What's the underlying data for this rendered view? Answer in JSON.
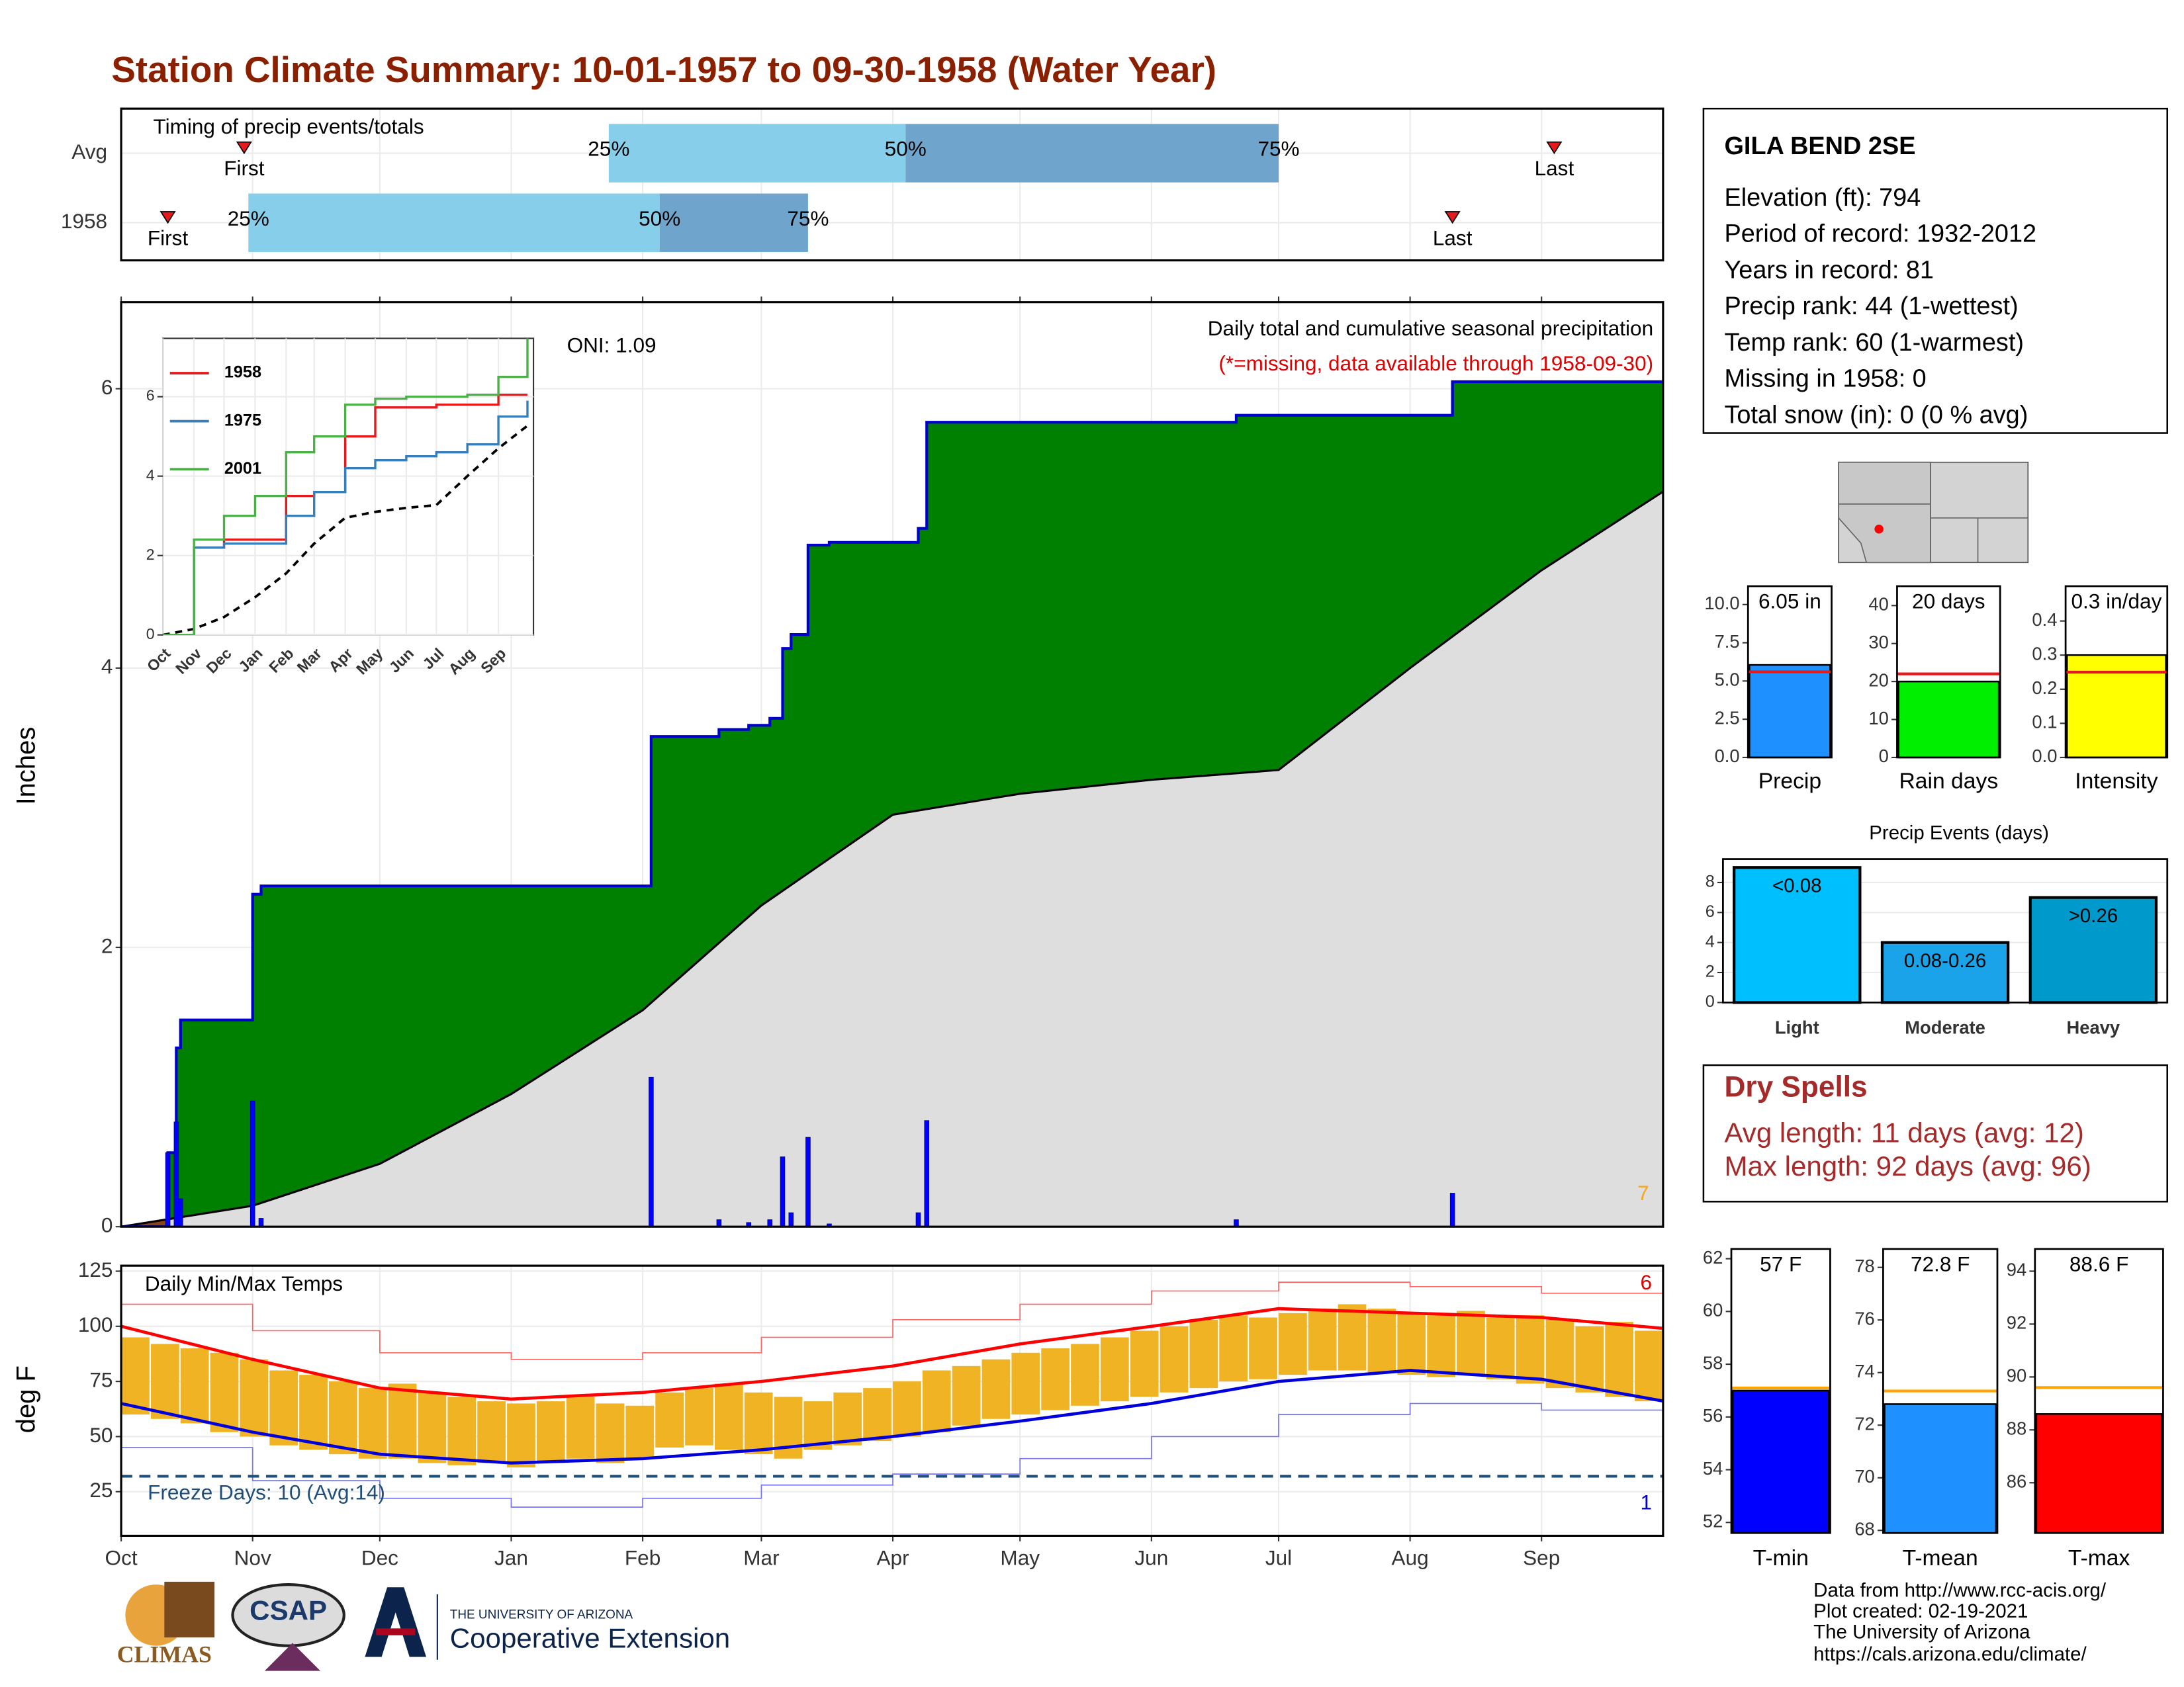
{
  "title": "Station Climate Summary: 10-01-1957 to 09-30-1958 (Water Year)",
  "station": {
    "name": "GILA BEND 2SE",
    "lines": [
      "Elevation (ft): 794",
      "Period of record: 1932-2012",
      "Years in record: 81",
      "Precip rank: 44 (1-wettest)",
      "Temp rank: 60 (1-warmest)",
      "Missing in 1958: 0",
      "Total snow (in): 0 (0 % avg)"
    ]
  },
  "dry_spells": {
    "title": "Dry Spells",
    "lines": [
      "Avg length: 11 days (avg: 12)",
      "Max length: 92 days (avg: 96)"
    ]
  },
  "footer": [
    "Data from http://www.rcc-acis.org/",
    "Plot created: 02-19-2021",
    "The University of Arizona",
    "https://cals.arizona.edu/climate/"
  ],
  "logos": [
    "CLIMAS",
    "CSAP",
    "THE UNIVERSITY OF ARIZONA",
    "Cooperative Extension"
  ],
  "chart_data": [
    {
      "type": "timeline",
      "title": "Timing of precip events/totals",
      "categories": [
        "Avg",
        "1958"
      ],
      "first": [
        29,
        11
      ],
      "q25": [
        115,
        30
      ],
      "q50": [
        185,
        127
      ],
      "q75": [
        273,
        162
      ],
      "last": [
        338,
        314
      ],
      "quantile_labels": [
        "25%",
        "50%",
        "75%"
      ],
      "first_label": "First",
      "last_label": "Last",
      "xlim": [
        0,
        364
      ],
      "colors": [
        "#87ceeb",
        "#6fa5cc"
      ],
      "marker_color": "#e41a1c"
    },
    {
      "type": "area",
      "title": "Daily total and cumulative seasonal precipitation",
      "subtitle": "(*=missing, data available through 1958-09-30)",
      "annotation": "ONI: 1.09",
      "record_count": 7,
      "ylabel": "Inches",
      "xlim": [
        0,
        364
      ],
      "xticks": [
        {
          "value": 0,
          "label": "Oct"
        },
        {
          "value": 31,
          "label": "Nov"
        },
        {
          "value": 61,
          "label": "Dec"
        },
        {
          "value": 92,
          "label": "Jan"
        },
        {
          "value": 123,
          "label": "Feb"
        },
        {
          "value": 151,
          "label": "Mar"
        },
        {
          "value": 182,
          "label": "Apr"
        },
        {
          "value": 212,
          "label": "May"
        },
        {
          "value": 243,
          "label": "Jun"
        },
        {
          "value": 273,
          "label": "Jul"
        },
        {
          "value": 304,
          "label": "Aug"
        },
        {
          "value": 335,
          "label": "Sep"
        }
      ],
      "ylim": [
        0,
        6.62
      ],
      "yticks": [
        0,
        2,
        4,
        6
      ],
      "grid": true,
      "daily": {
        "x": [
          11,
          13,
          14,
          31,
          33,
          125,
          141,
          148,
          153,
          156,
          158,
          162,
          167,
          188,
          190,
          263,
          314
        ],
        "values": [
          0.53,
          0.75,
          0.2,
          0.9,
          0.06,
          1.07,
          0.05,
          0.03,
          0.05,
          0.5,
          0.1,
          0.64,
          0.02,
          0.1,
          0.76,
          0.05,
          0.24
        ],
        "color": "#0000ff"
      },
      "cumulative": {
        "x": [
          0,
          11,
          13,
          14,
          31,
          33,
          125,
          141,
          148,
          153,
          156,
          158,
          162,
          167,
          188,
          190,
          263,
          314,
          364
        ],
        "values": [
          0,
          0.53,
          1.28,
          1.48,
          2.38,
          2.44,
          3.51,
          3.56,
          3.59,
          3.64,
          4.14,
          4.24,
          4.88,
          4.9,
          5.0,
          5.76,
          5.81,
          6.05,
          6.05
        ],
        "color": "#008000",
        "line_color": "#0000cc"
      },
      "normal": {
        "x": [
          0,
          31,
          61,
          92,
          123,
          151,
          182,
          212,
          243,
          273,
          304,
          335,
          364
        ],
        "values": [
          0,
          0.15,
          0.45,
          0.95,
          1.55,
          2.3,
          2.95,
          3.1,
          3.2,
          3.27,
          4.0,
          4.7,
          5.27
        ],
        "color": "#dedede",
        "line_color": "#000000"
      },
      "deficit_color": "#8b4513",
      "marker_color": "#f5a623"
    },
    {
      "type": "line",
      "x": [
        0,
        31,
        61,
        92,
        123,
        151,
        182,
        212,
        243,
        273,
        304,
        335,
        364
      ],
      "xlim": [
        0,
        370
      ],
      "ylim": [
        0,
        7.47
      ],
      "yticks": [
        0,
        2,
        4,
        6
      ],
      "grid": true,
      "series": [
        {
          "name": "1958",
          "color": "#e41a1c",
          "values": [
            0,
            2.2,
            2.4,
            2.4,
            3.5,
            3.6,
            5.0,
            5.73,
            5.73,
            5.8,
            5.8,
            6.05,
            6.05
          ]
        },
        {
          "name": "1975",
          "color": "#377eb8",
          "values": [
            0,
            2.2,
            2.3,
            2.3,
            3.0,
            3.6,
            4.2,
            4.4,
            4.5,
            4.6,
            4.8,
            5.5,
            5.9
          ]
        },
        {
          "name": "2001",
          "color": "#4daf4a",
          "values": [
            0,
            2.4,
            3.0,
            3.5,
            4.6,
            5.0,
            5.8,
            5.95,
            6.0,
            6.0,
            6.05,
            6.5,
            7.5
          ]
        }
      ]
    },
    {
      "type": "range",
      "title": "Daily Min/Max Temps",
      "ylabel": "deg F",
      "ylim": [
        5,
        127.5
      ],
      "yticks": [
        25,
        50,
        75,
        100,
        125
      ],
      "xlim": [
        0,
        364
      ],
      "grid": true,
      "x": [
        0,
        7,
        14,
        21,
        28,
        35,
        42,
        49,
        56,
        63,
        70,
        77,
        84,
        91,
        98,
        105,
        112,
        119,
        126,
        133,
        140,
        147,
        154,
        161,
        168,
        175,
        182,
        189,
        196,
        203,
        210,
        217,
        224,
        231,
        238,
        245,
        252,
        259,
        266,
        273,
        280,
        287,
        294,
        301,
        308,
        315,
        322,
        329,
        336,
        343,
        350,
        357,
        364
      ],
      "max": [
        95,
        92,
        90,
        88,
        85,
        80,
        78,
        75,
        72,
        74,
        70,
        68,
        66,
        65,
        66,
        68,
        65,
        64,
        70,
        72,
        74,
        70,
        68,
        66,
        70,
        72,
        75,
        80,
        82,
        85,
        88,
        90,
        92,
        95,
        98,
        100,
        103,
        105,
        104,
        106,
        108,
        110,
        108,
        106,
        105,
        107,
        104,
        105,
        103,
        100,
        102,
        98,
        95
      ],
      "min": [
        60,
        58,
        56,
        52,
        50,
        46,
        44,
        42,
        40,
        40,
        38,
        37,
        38,
        36,
        38,
        40,
        38,
        40,
        45,
        46,
        44,
        42,
        40,
        44,
        46,
        48,
        50,
        52,
        55,
        58,
        60,
        62,
        64,
        66,
        68,
        70,
        72,
        75,
        76,
        78,
        80,
        80,
        79,
        78,
        77,
        78,
        76,
        74,
        72,
        70,
        68,
        66,
        62
      ],
      "bar_color": "#f0b323",
      "normal": {
        "x": [
          0,
          31,
          61,
          92,
          123,
          151,
          182,
          212,
          243,
          273,
          304,
          335,
          364
        ],
        "max": [
          100,
          85,
          72,
          67,
          70,
          75,
          82,
          92,
          100,
          108,
          106,
          104,
          99
        ],
        "min": [
          65,
          52,
          42,
          38,
          40,
          44,
          50,
          57,
          65,
          75,
          80,
          76,
          66
        ]
      },
      "record": {
        "high": [
          110,
          98,
          88,
          85,
          88,
          95,
          103,
          110,
          116,
          120,
          118,
          115,
          110
        ],
        "low": [
          45,
          30,
          22,
          18,
          22,
          28,
          33,
          40,
          50,
          60,
          65,
          62,
          48
        ]
      },
      "freeze": 32,
      "freeze_label": "Freeze Days: 10 (Avg:14)",
      "high_count": 6,
      "low_count": 1
    },
    {
      "type": "bar",
      "categories": [
        "Precip"
      ],
      "values": [
        6.05
      ],
      "value_labels": [
        "6.05 in"
      ],
      "normal": 5.6,
      "color": "#1e90ff",
      "normal_color": "#e41a1c",
      "ylim": [
        0,
        11.2
      ],
      "yticks": [
        {
          "value": 0,
          "label": "0.0"
        },
        2.5,
        {
          "value": 5,
          "label": "5.0"
        },
        7.5,
        {
          "value": 10,
          "label": "10.0"
        }
      ]
    },
    {
      "type": "bar",
      "categories": [
        "Rain days"
      ],
      "values": [
        20
      ],
      "value_labels": [
        "20 days"
      ],
      "normal": 22,
      "color": "#00ee00",
      "normal_color": "#e41a1c",
      "ylim": [
        0,
        45.1
      ],
      "yticks": [
        0,
        10,
        20,
        30,
        40
      ]
    },
    {
      "type": "bar",
      "categories": [
        "Intensity"
      ],
      "values": [
        0.3
      ],
      "value_labels": [
        "0.3 in/day"
      ],
      "normal": 0.25,
      "color": "#ffff00",
      "normal_color": "#e41a1c",
      "ylim": [
        0,
        0.502
      ],
      "yticks": [
        {
          "value": 0,
          "label": "0.0"
        },
        0.1,
        0.2,
        0.3,
        0.4
      ]
    },
    {
      "type": "bar",
      "title": "Precip Events (days)",
      "categories": [
        "Light",
        "Moderate",
        "Heavy"
      ],
      "values": [
        9,
        4,
        7
      ],
      "bin_labels": [
        "<0.08",
        "0.08-0.26",
        ">0.26"
      ],
      "colors": [
        "#00bfff",
        "#1aa3e8",
        "#0099cc"
      ],
      "ylim": [
        0,
        9.56
      ],
      "yticks": [
        0,
        2,
        4,
        6,
        8
      ]
    },
    {
      "type": "bar",
      "categories": [
        "T-min"
      ],
      "values": [
        57
      ],
      "value_labels": [
        "57 F"
      ],
      "normal": 57.1,
      "color": "#0000ff",
      "normal_color": "#ffa500",
      "ylim": [
        51.6,
        62.37
      ],
      "yticks": [
        52,
        54,
        56,
        58,
        60,
        62
      ]
    },
    {
      "type": "bar",
      "categories": [
        "T-mean"
      ],
      "values": [
        72.8
      ],
      "value_labels": [
        "72.8 F"
      ],
      "normal": 73.3,
      "color": "#1e90ff",
      "normal_color": "#ffa500",
      "ylim": [
        67.9,
        78.7
      ],
      "yticks": [
        68,
        70,
        72,
        74,
        76,
        78
      ]
    },
    {
      "type": "bar",
      "categories": [
        "T-max"
      ],
      "values": [
        88.6
      ],
      "value_labels": [
        "88.6 F"
      ],
      "normal": 89.6,
      "color": "#ff0000",
      "normal_color": "#ffa500",
      "ylim": [
        84.1,
        94.84
      ],
      "yticks": [
        86,
        88,
        90,
        92,
        94
      ]
    }
  ]
}
